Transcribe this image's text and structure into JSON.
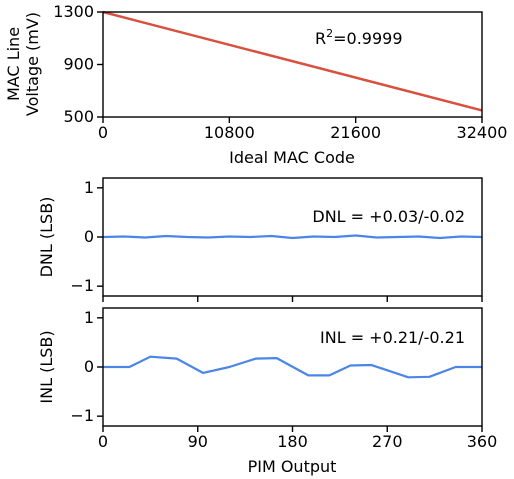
{
  "chart_data": [
    {
      "type": "line",
      "xlabel": "Ideal MAC Code",
      "ylabel_lines": [
        "MAC Line",
        "Voltage (mV)"
      ],
      "xlim": [
        0,
        32400
      ],
      "ylim": [
        500,
        1300
      ],
      "xticks": [
        0,
        10800,
        21600,
        32400
      ],
      "xtick_labels": [
        "0",
        "10800",
        "21600",
        "32400"
      ],
      "yticks": [
        500,
        900,
        1300
      ],
      "ytick_labels": [
        "500",
        "900",
        "1300"
      ],
      "annotation": {
        "base": "R",
        "sup": "2",
        "rest": "=0.9999"
      },
      "line_color": "#d9503f",
      "series": [
        {
          "x": [
            0,
            32400
          ],
          "y": [
            1300,
            550
          ]
        }
      ],
      "grid": false
    },
    {
      "type": "line",
      "ylabel": "DNL (LSB)",
      "xlim": [
        0,
        360
      ],
      "ylim": [
        -1.2,
        1.2
      ],
      "yticks": [
        -1,
        0,
        1
      ],
      "ytick_labels": [
        "−1",
        "0",
        "1"
      ],
      "annotation": "DNL = +0.03/-0.02",
      "line_color": "#4a86e8",
      "series": [
        {
          "x": [
            0,
            20,
            40,
            60,
            80,
            100,
            120,
            140,
            160,
            180,
            200,
            220,
            240,
            260,
            280,
            300,
            320,
            340,
            360
          ],
          "y": [
            0.0,
            0.01,
            -0.01,
            0.02,
            0.0,
            -0.01,
            0.01,
            0.0,
            0.02,
            -0.02,
            0.01,
            0.0,
            0.03,
            -0.01,
            0.0,
            0.01,
            -0.02,
            0.01,
            0.0
          ]
        }
      ],
      "grid": false
    },
    {
      "type": "line",
      "xlabel": "PIM Output",
      "ylabel": "INL (LSB)",
      "xlim": [
        0,
        360
      ],
      "ylim": [
        -1.2,
        1.2
      ],
      "xticks": [
        0,
        90,
        180,
        270,
        360
      ],
      "xtick_labels": [
        "0",
        "90",
        "180",
        "270",
        "360"
      ],
      "yticks": [
        -1,
        0,
        1
      ],
      "ytick_labels": [
        "−1",
        "0",
        "1"
      ],
      "annotation": "INL = +0.21/-0.21",
      "line_color": "#4a86e8",
      "series": [
        {
          "x": [
            0,
            25,
            45,
            70,
            95,
            120,
            145,
            165,
            195,
            215,
            235,
            255,
            290,
            310,
            335,
            360
          ],
          "y": [
            0.0,
            0.0,
            0.21,
            0.17,
            -0.12,
            0.0,
            0.17,
            0.18,
            -0.17,
            -0.17,
            0.03,
            0.04,
            -0.21,
            -0.2,
            0.0,
            0.0
          ]
        }
      ],
      "grid": false
    }
  ]
}
